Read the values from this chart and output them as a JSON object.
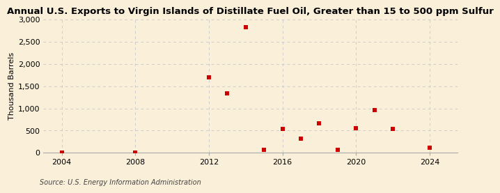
{
  "title": "Annual U.S. Exports to Virgin Islands of Distillate Fuel Oil, Greater than 15 to 500 ppm Sulfur",
  "ylabel": "Thousand Barrels",
  "source": "Source: U.S. Energy Information Administration",
  "years": [
    2004,
    2008,
    2012,
    2013,
    2014,
    2015,
    2016,
    2017,
    2018,
    2019,
    2020,
    2021,
    2022,
    2024
  ],
  "values": [
    2,
    2,
    1697,
    1330,
    2830,
    62,
    530,
    320,
    660,
    62,
    550,
    960,
    530,
    110
  ],
  "marker_color": "#cc0000",
  "marker_size": 18,
  "bg_color": "#faefd8",
  "grid_color": "#cccccc",
  "xlim": [
    2003,
    2025.5
  ],
  "ylim": [
    0,
    3000
  ],
  "yticks": [
    0,
    500,
    1000,
    1500,
    2000,
    2500,
    3000
  ],
  "xticks": [
    2004,
    2008,
    2012,
    2016,
    2020,
    2024
  ],
  "title_fontsize": 9.5,
  "label_fontsize": 8,
  "tick_fontsize": 8,
  "source_fontsize": 7
}
